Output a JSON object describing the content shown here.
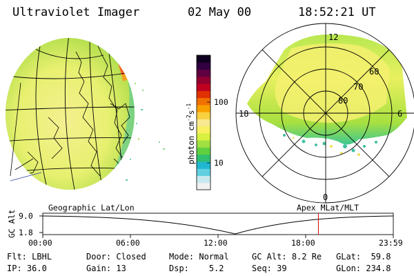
{
  "header": {
    "instrument": "Ultraviolet Imager",
    "date": "02 May 00",
    "time": "18:52:21 UT"
  },
  "panels": {
    "left_label": "Geographic Lat/Lon",
    "right_label": "Apex MLat/MLT"
  },
  "colorbar": {
    "unit_label": "photon cm",
    "unit_sup1": "-2",
    "unit_mid": "s",
    "unit_sup2": "-1",
    "ticks": [
      {
        "label": "100",
        "value": 100
      },
      {
        "label": "10",
        "value": 10
      }
    ],
    "colors": [
      "#f0f0f0",
      "#c8e8f0",
      "#60d0e0",
      "#20b8d0",
      "#30c070",
      "#60d040",
      "#a0e040",
      "#d8f040",
      "#f8f060",
      "#f8e890",
      "#f8d040",
      "#f8a000",
      "#f07000",
      "#e03000",
      "#c00020",
      "#900030",
      "#600040",
      "#300040",
      "#100020"
    ]
  },
  "polar": {
    "mlt_labels": [
      {
        "label": "12",
        "angle": 0
      },
      {
        "label": "6",
        "angle": 90
      },
      {
        "label": "0",
        "angle": 180
      },
      {
        "label": "18",
        "angle": 270
      }
    ],
    "mlat_labels": [
      {
        "label": "80",
        "value": 80
      },
      {
        "label": "70",
        "value": 70
      },
      {
        "label": "60",
        "value": 60
      }
    ]
  },
  "altitude_plot": {
    "ylabel": "GC Alt",
    "y_ticks": [
      "9.0",
      "1.8"
    ],
    "x_ticks": [
      "00:00",
      "06:00",
      "12:00",
      "18:00",
      "23:59"
    ],
    "current_time_hours": 18.87
  },
  "info": {
    "flt_label": "Flt:",
    "flt_value": "LBHL",
    "ip_label": "IP:",
    "ip_value": "36.0",
    "door_label": "Door:",
    "door_value": "Closed",
    "gain_label": "Gain:",
    "gain_value": "13",
    "mode_label": "Mode:",
    "mode_value": "Normal",
    "dsp_label": "Dsp:",
    "dsp_value": "5.2",
    "gcalt_label": "GC Alt:",
    "gcalt_value": "8.2 Re",
    "seq_label": "Seq:",
    "seq_value": "39",
    "glat_label": "GLat:",
    "glat_value": "59.8",
    "glon_label": "GLon:",
    "glon_value": "234.8"
  }
}
